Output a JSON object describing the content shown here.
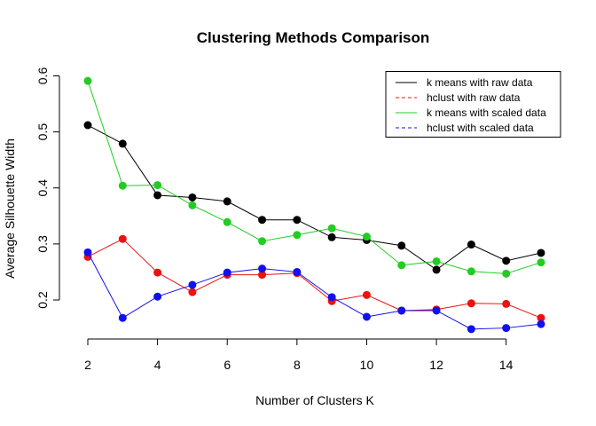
{
  "chart_data": {
    "type": "line",
    "title": "Clustering Methods Comparison",
    "xlabel": "Number of Clusters K",
    "ylabel": "Average Silhouette Width",
    "x": [
      2,
      3,
      4,
      5,
      6,
      7,
      8,
      9,
      10,
      11,
      12,
      13,
      14,
      15
    ],
    "xlim": [
      2,
      15
    ],
    "ylim": [
      0.13,
      0.6
    ],
    "x_ticks": [
      2,
      4,
      6,
      8,
      10,
      12,
      14
    ],
    "y_ticks": [
      0.2,
      0.3,
      0.4,
      0.5,
      0.6
    ],
    "grid": false,
    "legend_position": "top-right",
    "series": [
      {
        "name": "k means with raw data",
        "color": "#000000",
        "line_style": "solid",
        "values": [
          0.512,
          0.479,
          0.387,
          0.383,
          0.376,
          0.343,
          0.343,
          0.312,
          0.307,
          0.297,
          0.254,
          0.299,
          0.27,
          0.284
        ]
      },
      {
        "name": "hclust with raw data",
        "color": "#ee1111",
        "line_style": "dashed",
        "values": [
          0.277,
          0.309,
          0.249,
          0.214,
          0.245,
          0.245,
          0.248,
          0.198,
          0.209,
          0.181,
          0.183,
          0.194,
          0.193,
          0.168
        ]
      },
      {
        "name": "k means with scaled data",
        "color": "#22cc22",
        "line_style": "solid",
        "values": [
          0.591,
          0.404,
          0.405,
          0.369,
          0.339,
          0.305,
          0.316,
          0.328,
          0.313,
          0.262,
          0.269,
          0.251,
          0.247,
          0.267
        ]
      },
      {
        "name": "hclust with scaled data",
        "color": "#1111ee",
        "line_style": "dashed",
        "values": [
          0.285,
          0.168,
          0.206,
          0.227,
          0.249,
          0.256,
          0.25,
          0.205,
          0.17,
          0.181,
          0.181,
          0.148,
          0.15,
          0.157
        ]
      }
    ]
  }
}
